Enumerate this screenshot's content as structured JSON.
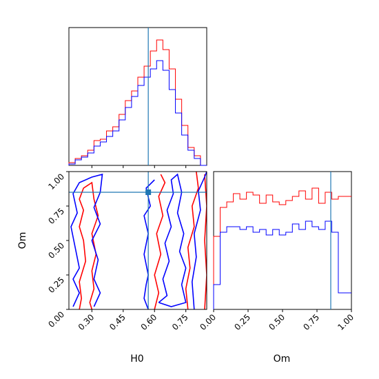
{
  "chart_data": [
    {
      "panel": "H0 marginal",
      "type": "line",
      "series": [
        {
          "color": "#ff0000",
          "x": [
            0.19,
            0.23,
            0.26,
            0.3,
            0.33,
            0.36,
            0.4,
            0.43,
            0.46,
            0.49,
            0.52,
            0.55,
            0.58,
            0.61,
            0.64,
            0.67,
            0.7,
            0.73,
            0.76,
            0.79,
            0.82,
            0.85
          ],
          "values": [
            0.02,
            0.05,
            0.07,
            0.11,
            0.18,
            0.19,
            0.25,
            0.28,
            0.37,
            0.47,
            0.54,
            0.64,
            0.72,
            0.83,
            0.91,
            0.84,
            0.7,
            0.48,
            0.29,
            0.13,
            0.07,
            0.0
          ]
        },
        {
          "color": "#0000ff",
          "x": [
            0.19,
            0.23,
            0.26,
            0.3,
            0.33,
            0.36,
            0.4,
            0.43,
            0.46,
            0.49,
            0.52,
            0.55,
            0.58,
            0.61,
            0.64,
            0.67,
            0.7,
            0.73,
            0.76,
            0.79,
            0.82,
            0.85
          ],
          "values": [
            0.01,
            0.04,
            0.06,
            0.09,
            0.14,
            0.17,
            0.21,
            0.25,
            0.33,
            0.42,
            0.5,
            0.58,
            0.64,
            0.7,
            0.76,
            0.69,
            0.55,
            0.38,
            0.22,
            0.11,
            0.05,
            0.0
          ]
        }
      ],
      "truth": 0.57
    },
    {
      "panel": "Om marginal",
      "type": "line",
      "series": [
        {
          "color": "#ff0000",
          "x": [
            0.0,
            0.05,
            0.1,
            0.15,
            0.2,
            0.25,
            0.3,
            0.35,
            0.4,
            0.45,
            0.5,
            0.55,
            0.6,
            0.65,
            0.7,
            0.75,
            0.8,
            0.85,
            0.9,
            0.95,
            1.0
          ],
          "values": [
            0.53,
            0.74,
            0.78,
            0.84,
            0.8,
            0.85,
            0.83,
            0.77,
            0.83,
            0.78,
            0.76,
            0.79,
            0.82,
            0.86,
            0.8,
            0.88,
            0.77,
            0.85,
            0.8,
            0.82,
            0.82
          ]
        },
        {
          "color": "#0000ff",
          "x": [
            0.0,
            0.05,
            0.1,
            0.15,
            0.2,
            0.25,
            0.3,
            0.35,
            0.4,
            0.45,
            0.5,
            0.55,
            0.6,
            0.65,
            0.7,
            0.75,
            0.8,
            0.85,
            0.9,
            0.95,
            1.0
          ],
          "values": [
            0.18,
            0.56,
            0.6,
            0.6,
            0.58,
            0.6,
            0.56,
            0.58,
            0.54,
            0.58,
            0.54,
            0.56,
            0.62,
            0.58,
            0.64,
            0.6,
            0.58,
            0.64,
            0.56,
            0.12,
            0.12
          ]
        }
      ],
      "truth": 0.85
    },
    {
      "panel": "H0 vs Om contours",
      "type": "line",
      "xlabel": "H0",
      "ylabel": "Om",
      "xlim": [
        0.19,
        0.85
      ],
      "ylim": [
        0.0,
        1.0
      ],
      "xticks": [
        "0.30",
        "0.45",
        "0.60",
        "0.75"
      ],
      "yticks": [
        "0.00",
        "0.25",
        "0.50",
        "0.75",
        "1.00"
      ],
      "truth": {
        "x": 0.57,
        "y": 0.85
      },
      "contours": [
        {
          "color": "#ff0000",
          "points": [
            [
              0.24,
              0.0
            ],
            [
              0.25,
              0.08
            ],
            [
              0.24,
              0.2
            ],
            [
              0.27,
              0.35
            ],
            [
              0.26,
              0.5
            ],
            [
              0.24,
              0.6
            ],
            [
              0.26,
              0.72
            ],
            [
              0.24,
              0.8
            ],
            [
              0.26,
              0.88
            ],
            [
              0.3,
              0.92
            ],
            [
              0.31,
              0.8
            ],
            [
              0.33,
              0.68
            ],
            [
              0.3,
              0.55
            ],
            [
              0.32,
              0.4
            ],
            [
              0.3,
              0.28
            ],
            [
              0.31,
              0.15
            ],
            [
              0.29,
              0.05
            ],
            [
              0.3,
              0.0
            ]
          ]
        },
        {
          "color": "#ff0000",
          "points": [
            [
              0.6,
              0.0
            ],
            [
              0.62,
              0.12
            ],
            [
              0.6,
              0.25
            ],
            [
              0.63,
              0.4
            ],
            [
              0.61,
              0.55
            ],
            [
              0.64,
              0.68
            ],
            [
              0.62,
              0.82
            ],
            [
              0.65,
              0.92
            ],
            [
              0.63,
              0.98
            ]
          ]
        },
        {
          "color": "#ff0000",
          "points": [
            [
              0.76,
              0.0
            ],
            [
              0.75,
              0.15
            ],
            [
              0.77,
              0.3
            ],
            [
              0.76,
              0.45
            ],
            [
              0.79,
              0.6
            ],
            [
              0.78,
              0.75
            ],
            [
              0.81,
              0.88
            ],
            [
              0.8,
              1.0
            ]
          ]
        },
        {
          "color": "#ff0000",
          "points": [
            [
              0.84,
              0.0
            ],
            [
              0.85,
              0.25
            ],
            [
              0.84,
              0.5
            ],
            [
              0.85,
              0.75
            ],
            [
              0.84,
              0.98
            ]
          ]
        },
        {
          "color": "#0000ff",
          "points": [
            [
              0.21,
              0.02
            ],
            [
              0.24,
              0.12
            ],
            [
              0.21,
              0.22
            ],
            [
              0.24,
              0.3
            ],
            [
              0.22,
              0.45
            ],
            [
              0.2,
              0.6
            ],
            [
              0.23,
              0.7
            ],
            [
              0.21,
              0.84
            ],
            [
              0.24,
              0.92
            ],
            [
              0.3,
              0.96
            ],
            [
              0.35,
              0.98
            ],
            [
              0.34,
              0.85
            ],
            [
              0.31,
              0.74
            ],
            [
              0.34,
              0.62
            ],
            [
              0.3,
              0.5
            ],
            [
              0.33,
              0.36
            ],
            [
              0.31,
              0.22
            ],
            [
              0.34,
              0.12
            ],
            [
              0.31,
              0.02
            ]
          ]
        },
        {
          "color": "#0000ff",
          "points": [
            [
              0.57,
              0.0
            ],
            [
              0.55,
              0.08
            ],
            [
              0.56,
              0.18
            ],
            [
              0.57,
              0.25
            ],
            [
              0.55,
              0.4
            ],
            [
              0.57,
              0.55
            ],
            [
              0.55,
              0.68
            ],
            [
              0.58,
              0.75
            ],
            [
              0.56,
              0.88
            ],
            [
              0.6,
              0.94
            ]
          ]
        },
        {
          "color": "#0000ff",
          "points": [
            [
              0.62,
              0.05
            ],
            [
              0.66,
              0.1
            ],
            [
              0.64,
              0.22
            ],
            [
              0.67,
              0.35
            ],
            [
              0.65,
              0.48
            ],
            [
              0.68,
              0.6
            ],
            [
              0.66,
              0.72
            ],
            [
              0.69,
              0.84
            ],
            [
              0.68,
              0.94
            ],
            [
              0.71,
              0.98
            ],
            [
              0.73,
              0.85
            ],
            [
              0.71,
              0.7
            ],
            [
              0.74,
              0.55
            ],
            [
              0.72,
              0.42
            ],
            [
              0.75,
              0.3
            ],
            [
              0.73,
              0.18
            ],
            [
              0.75,
              0.05
            ],
            [
              0.68,
              0.02
            ],
            [
              0.62,
              0.05
            ]
          ]
        },
        {
          "color": "#0000ff",
          "points": [
            [
              0.79,
              0.0
            ],
            [
              0.78,
              0.2
            ],
            [
              0.8,
              0.38
            ],
            [
              0.79,
              0.55
            ],
            [
              0.82,
              0.72
            ],
            [
              0.81,
              0.86
            ],
            [
              0.84,
              0.96
            ],
            [
              0.85,
              1.0
            ]
          ]
        }
      ]
    }
  ],
  "panels": {
    "h0_marginal": {
      "xticks": [
        "0.30",
        "0.45",
        "0.60",
        "0.75"
      ]
    },
    "om_marginal": {
      "xlabel": "Om",
      "xticks": [
        "0.00",
        "0.25",
        "0.50",
        "0.75",
        "1.00"
      ]
    },
    "joint": {
      "xlabel": "H0",
      "ylabel": "Om",
      "xticks": [
        "0.30",
        "0.45",
        "0.60",
        "0.75"
      ],
      "yticks": [
        "0.00",
        "0.25",
        "0.50",
        "0.75",
        "1.00"
      ]
    }
  },
  "colors": {
    "red": "#ff0000",
    "blue": "#0000ff",
    "truth": "#1f77b4",
    "axis": "#000000"
  }
}
